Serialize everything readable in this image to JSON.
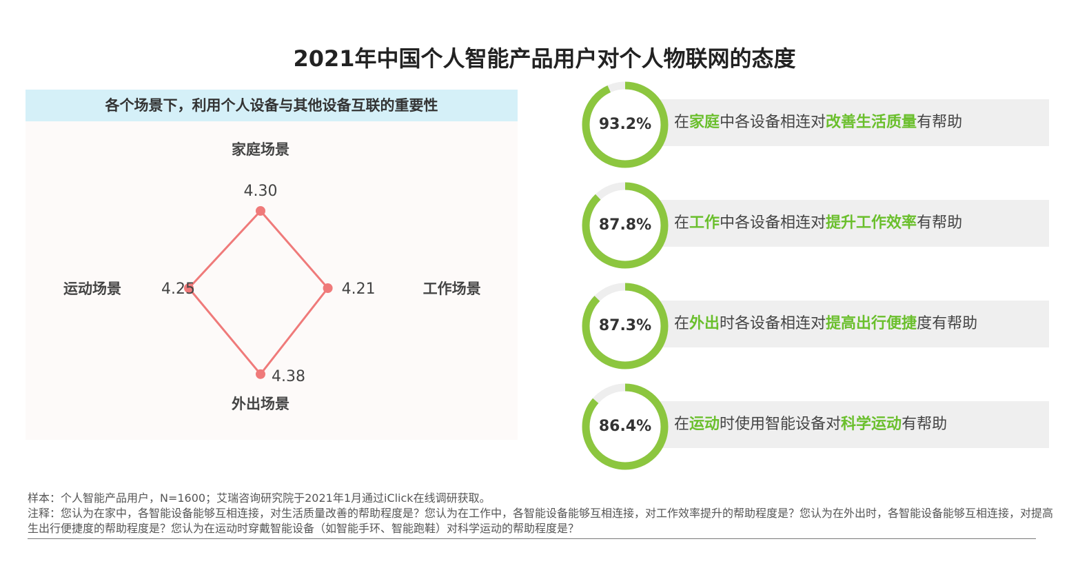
{
  "title": "2021年中国个人智能产品用户对个人物联网的态度",
  "left": {
    "header": "各个场景下，利用个人设备与其他设备互联的重要性"
  },
  "chart_data": [
    {
      "type": "radar",
      "title": "各个场景下，利用个人设备与其他设备互联的重要性",
      "categories": [
        "家庭场景",
        "工作场景",
        "外出场景",
        "运动场景"
      ],
      "values": [
        4.3,
        4.21,
        4.38,
        4.25
      ],
      "value_labels": [
        "4.30",
        "4.21",
        "4.38",
        "4.25"
      ],
      "color": "#ef7a7a"
    },
    {
      "type": "donut",
      "title": "",
      "series": [
        {
          "value": 93.2,
          "label": "93.2%"
        },
        {
          "value": 87.8,
          "label": "87.8%"
        },
        {
          "value": 87.3,
          "label": "87.3%"
        },
        {
          "value": 86.4,
          "label": "86.4%"
        }
      ],
      "color": "#8cc63f",
      "track_color": "#eeeeee"
    }
  ],
  "statements": [
    {
      "parts": [
        {
          "t": "在",
          "h": false
        },
        {
          "t": "家庭",
          "h": true
        },
        {
          "t": "中各设备相连对",
          "h": false
        },
        {
          "t": "改善生活质量",
          "h": true
        },
        {
          "t": "有帮助",
          "h": false
        }
      ]
    },
    {
      "parts": [
        {
          "t": "在",
          "h": false
        },
        {
          "t": "工作",
          "h": true
        },
        {
          "t": "中各设备相连对",
          "h": false
        },
        {
          "t": "提升工作效率",
          "h": true
        },
        {
          "t": "有帮助",
          "h": false
        }
      ]
    },
    {
      "parts": [
        {
          "t": "在",
          "h": false
        },
        {
          "t": "外出",
          "h": true
        },
        {
          "t": "时各设备相连对",
          "h": false
        },
        {
          "t": "提高出行便捷",
          "h": true
        },
        {
          "t": "度有帮助",
          "h": false
        }
      ]
    },
    {
      "parts": [
        {
          "t": "在",
          "h": false
        },
        {
          "t": "运动",
          "h": true
        },
        {
          "t": "时使用智能设备对",
          "h": false
        },
        {
          "t": "科学运动",
          "h": true
        },
        {
          "t": "有帮助",
          "h": false
        }
      ]
    }
  ],
  "footer": {
    "sample": "样本：个人智能产品用户，N=1600；艾瑞咨询研究院于2021年1月通过iClick在线调研获取。",
    "note": "注释：您认为在家中，各智能设备能够互相连接，对生活质量改善的帮助程度是？您认为在工作中，各智能设备能够互相连接，对工作效率提升的帮助程度是？您认为在外出时，各智能设备能够互相连接，对提高生出行便捷度的帮助程度是？您认为在运动时穿戴智能设备（如智能手环、智能跑鞋）对科学运动的帮助程度是？"
  },
  "colors": {
    "accent_green": "#6abf2c",
    "radar_line": "#ef7a7a",
    "header_bg": "#d5f0f8"
  }
}
